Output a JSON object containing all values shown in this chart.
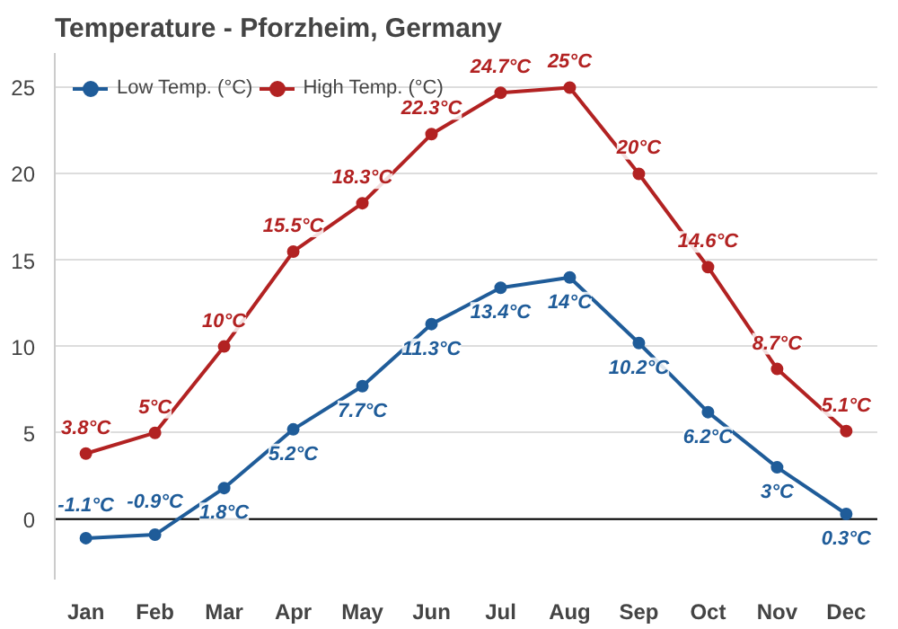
{
  "chart_data": {
    "type": "line",
    "title": "Temperature - Pforzheim, Germany",
    "categories": [
      "Jan",
      "Feb",
      "Mar",
      "Apr",
      "May",
      "Jun",
      "Jul",
      "Aug",
      "Sep",
      "Oct",
      "Nov",
      "Dec"
    ],
    "series": [
      {
        "name": "Low Temp. (°C)",
        "color": "#1f5c99",
        "values": [
          -1.1,
          -0.9,
          1.8,
          5.2,
          7.7,
          11.3,
          13.4,
          14,
          10.2,
          6.2,
          3,
          0.3
        ],
        "value_labels": [
          "-1.1°C",
          "-0.9°C",
          "1.8°C",
          "5.2°C",
          "7.7°C",
          "11.3°C",
          "13.4°C",
          "14°C",
          "10.2°C",
          "6.2°C",
          "3°C",
          "0.3°C"
        ]
      },
      {
        "name": "High Temp. (°C)",
        "color": "#b22222",
        "values": [
          3.8,
          5,
          10,
          15.5,
          18.3,
          22.3,
          24.7,
          25,
          20,
          14.6,
          8.7,
          5.1
        ],
        "value_labels": [
          "3.8°C",
          "5°C",
          "10°C",
          "15.5°C",
          "18.3°C",
          "22.3°C",
          "24.7°C",
          "25°C",
          "20°C",
          "14.6°C",
          "8.7°C",
          "5.1°C"
        ]
      }
    ],
    "ylim": [
      -3.5,
      27
    ],
    "yticks": [
      0,
      5,
      10,
      15,
      20,
      25
    ],
    "grid": "y",
    "legend": "top left",
    "marker": "circle",
    "line_style": "solid",
    "ref_lines": [
      {
        "axis": "y",
        "value": 0,
        "color": "#000000"
      }
    ]
  }
}
